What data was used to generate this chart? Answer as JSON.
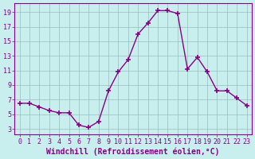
{
  "x": [
    0,
    1,
    2,
    3,
    4,
    5,
    6,
    7,
    8,
    9,
    10,
    11,
    12,
    13,
    14,
    15,
    16,
    17,
    18,
    19,
    20,
    21,
    22,
    23
  ],
  "y": [
    6.5,
    6.5,
    6.0,
    5.5,
    5.2,
    5.2,
    3.5,
    3.2,
    4.0,
    8.2,
    10.8,
    12.5,
    16.0,
    17.5,
    19.2,
    19.2,
    18.8,
    11.2,
    12.8,
    10.8,
    8.2,
    8.2,
    7.2,
    6.2
  ],
  "line_color": "#880088",
  "marker": "+",
  "marker_size": 4,
  "marker_lw": 1.2,
  "linewidth": 1.0,
  "bg_color": "#c8eeee",
  "grid_color": "#99bbbb",
  "xlabel": "Windchill (Refroidissement éolien,°C)",
  "xlabel_fontsize": 7,
  "ylabel_ticks": [
    3,
    5,
    7,
    9,
    11,
    13,
    15,
    17,
    19
  ],
  "xlim": [
    -0.5,
    23.5
  ],
  "ylim": [
    2.2,
    20.2
  ],
  "xticks": [
    0,
    1,
    2,
    3,
    4,
    5,
    6,
    7,
    8,
    9,
    10,
    11,
    12,
    13,
    14,
    15,
    16,
    17,
    18,
    19,
    20,
    21,
    22,
    23
  ],
  "tick_fontsize": 6
}
